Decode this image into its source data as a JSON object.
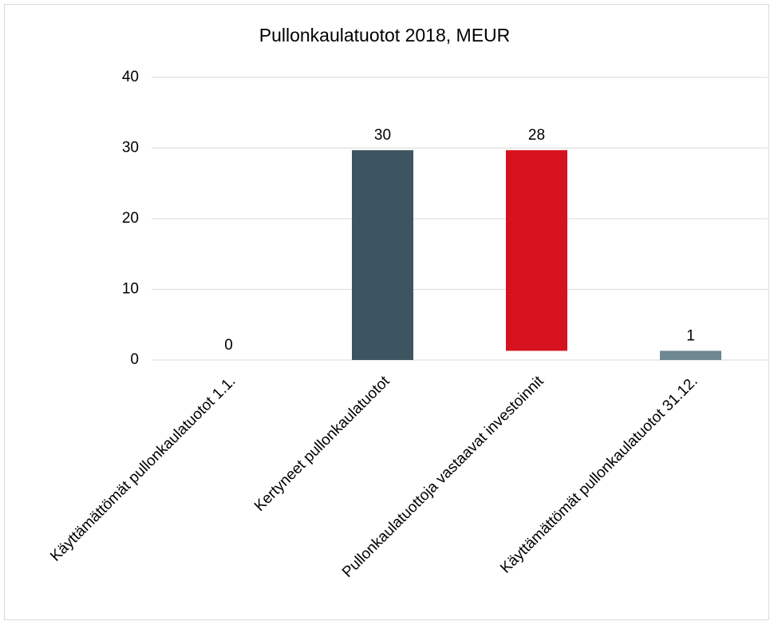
{
  "chart_data": {
    "type": "waterfall",
    "title": "Pullonkaulatuotot 2018, MEUR",
    "categories": [
      "Käyttämättömät pullonkaulatuotot 1.1.",
      "Kertyneet pullonkaulatuotot",
      "Pullonkaulatuottoja vastaavat investoinnit",
      "Käyttämättömät pullonkaulatuotot 31.12."
    ],
    "measure": [
      "total",
      "increase",
      "decrease",
      "total"
    ],
    "values": [
      0,
      29.7,
      28.4,
      1.3
    ],
    "value_labels": [
      "0",
      "30",
      "28",
      "1"
    ],
    "colors": [
      "#3d5560",
      "#3d5560",
      "#d7121f",
      "#6e8791"
    ],
    "ylim": [
      0,
      40
    ],
    "yticks": [
      0,
      10,
      20,
      30,
      40
    ],
    "grid": true
  }
}
